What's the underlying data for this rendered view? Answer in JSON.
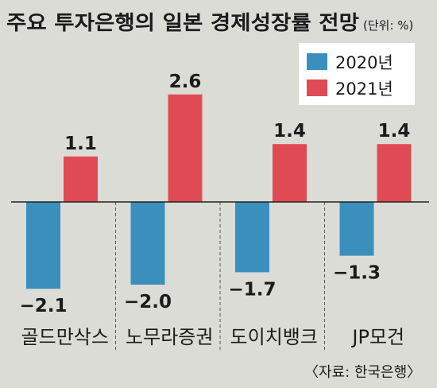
{
  "chart_data": {
    "type": "bar",
    "title": "주요 투자은행의 일본 경제성장률 전망",
    "unit": "(단위: %)",
    "categories": [
      "골드만삭스",
      "노무라증권",
      "도이치뱅크",
      "JP모건"
    ],
    "series": [
      {
        "name": "2020년",
        "values": [
          -2.1,
          -2.0,
          -1.7,
          -1.3
        ],
        "labels": [
          "−2.1",
          "−2.0",
          "−1.7",
          "−1.3"
        ],
        "color": "#3a8fbd"
      },
      {
        "name": "2021년",
        "values": [
          1.1,
          2.6,
          1.4,
          1.4
        ],
        "labels": [
          "1.1",
          "2.6",
          "1.4",
          "1.4"
        ],
        "color": "#e04a55"
      }
    ],
    "ylim": [
      -2.8,
      3.2
    ],
    "grid": false,
    "legend_position": "top-right",
    "source": "〈자료: 한국은행〉"
  },
  "colors": {
    "background": "#dcdcd7",
    "legend_background": "#ffffff",
    "axis": "#222222",
    "divider": "#555555"
  }
}
